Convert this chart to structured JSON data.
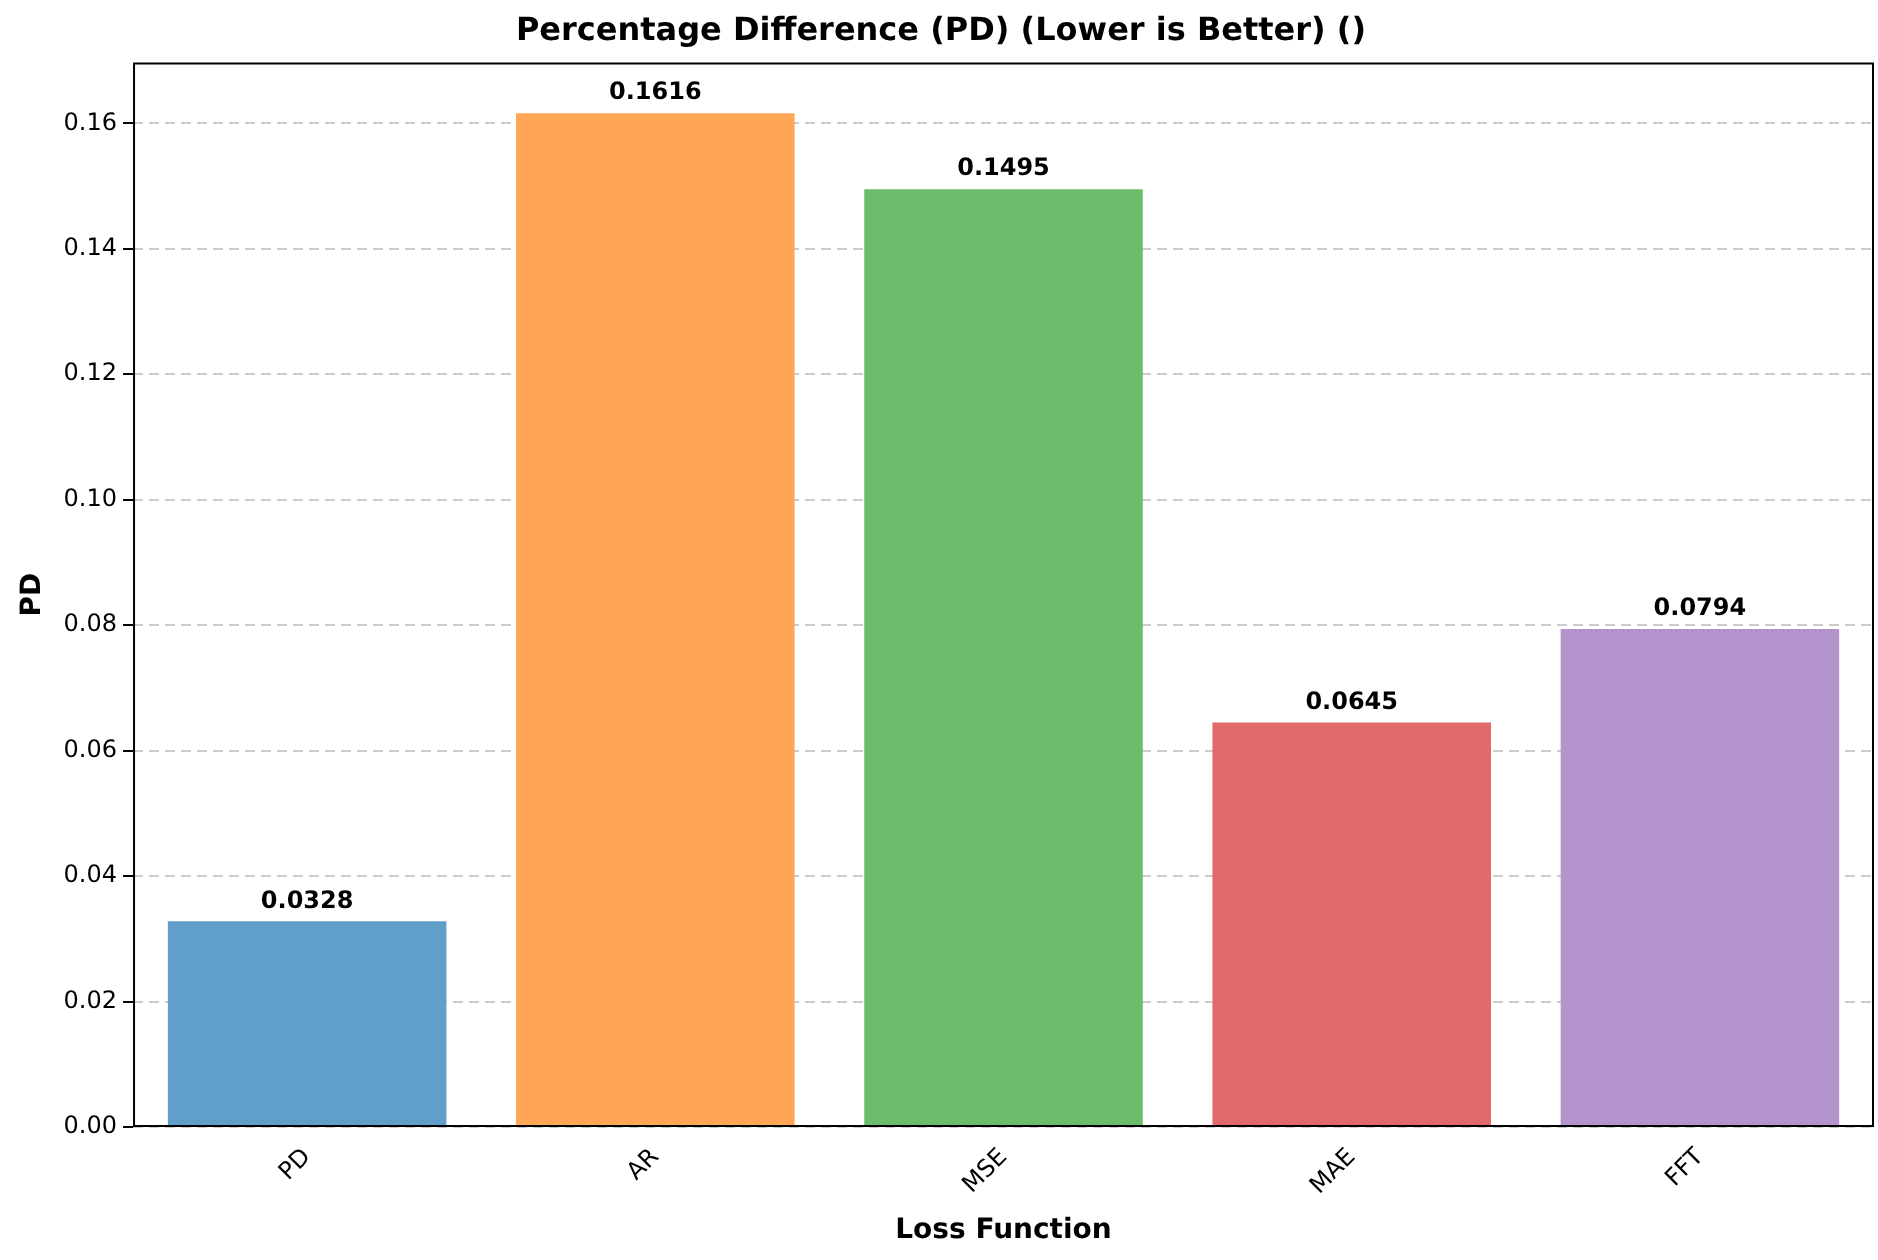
{
  "chart_data": {
    "type": "bar",
    "title": "Percentage Difference (PD) (Lower is Better) ()",
    "xlabel": "Loss Function",
    "ylabel": "PD",
    "categories": [
      "PD",
      "AR",
      "MSE",
      "MAE",
      "FFT"
    ],
    "values": [
      0.0328,
      0.1616,
      0.1495,
      0.0645,
      0.0794
    ],
    "colors": [
      "#5f9fca",
      "#ffa556",
      "#6bbd6b",
      "#e2696a",
      "#b394cd"
    ],
    "ylim": [
      0,
      0.1697
    ],
    "yticks": [
      {
        "value": 0,
        "label": "0.00"
      },
      {
        "value": 0.02,
        "label": "0.02"
      },
      {
        "value": 0.04,
        "label": "0.04"
      },
      {
        "value": 0.06,
        "label": "0.06"
      },
      {
        "value": 0.08,
        "label": "0.08"
      },
      {
        "value": 0.1,
        "label": "0.10"
      },
      {
        "value": 0.12,
        "label": "0.12"
      },
      {
        "value": 0.14,
        "label": "0.14"
      },
      {
        "value": 0.16,
        "label": "0.16"
      }
    ],
    "grid": "y",
    "data_labels": true
  }
}
